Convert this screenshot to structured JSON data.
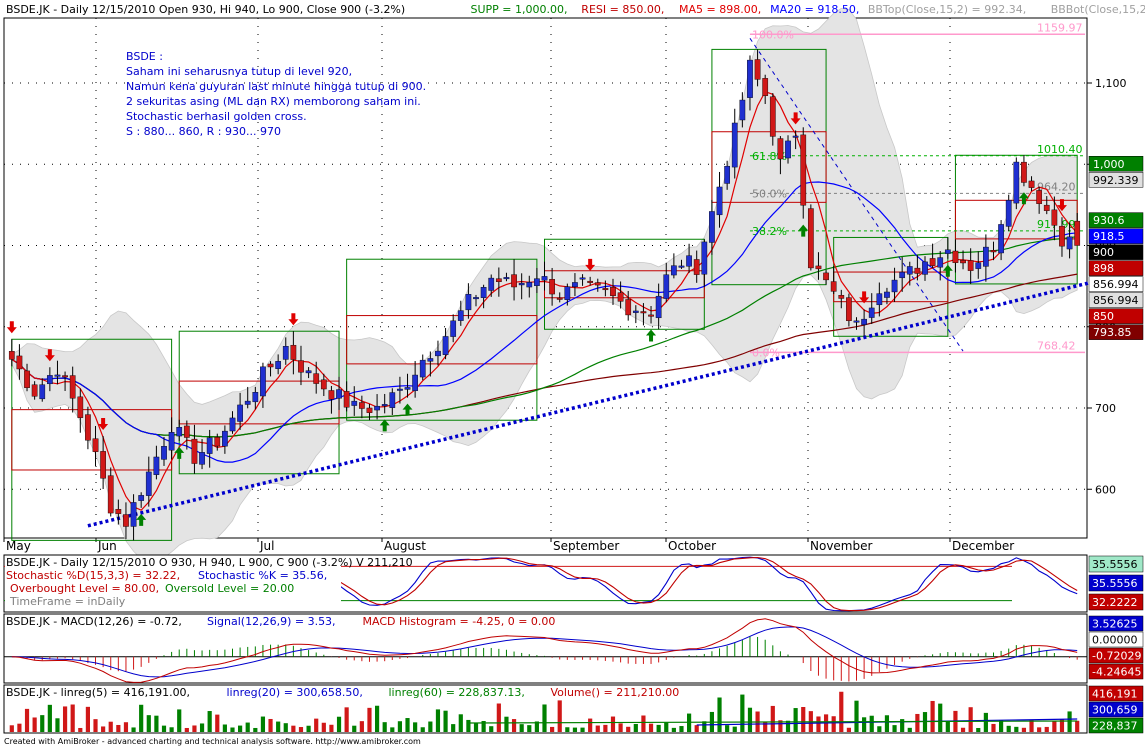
{
  "colors": {
    "up": "#1f2fd0",
    "down": "#d01818",
    "ma5": "#e00000",
    "ma20": "#0000ff",
    "ma60": "#008000",
    "ma100": "#800000",
    "support": "#008000",
    "resistance": "#c00000",
    "fib": "#00b000",
    "fib_grey": "#808080",
    "fib_pink": "#ff99cc",
    "trend": "#0000cc",
    "band_fill": "#e4e4e4",
    "grid": "#000000",
    "buy_arrow": "#008000",
    "sell_arrow": "#e00000",
    "annotation": "#0000cc"
  },
  "main": {
    "header": [
      {
        "text": "BSDE.JK - Daily 12/15/2010 Open 930, Hi 940, Lo 900, Close 900 (-3.2%)",
        "color": "#000000"
      },
      {
        "text": "SUPP = 1,000.00,",
        "color": "#008000"
      },
      {
        "text": "RESI = 850.00,",
        "color": "#c00000"
      },
      {
        "text": "MA5 = 898.00,",
        "color": "#e00000"
      },
      {
        "text": "MA20 = 918.50,",
        "color": "#0000ff"
      },
      {
        "text": "BBTop(Close,15,2) = 992.34,",
        "color": "#a0a0a0"
      },
      {
        "text": "BBBot(Close,15,2) = 8",
        "color": "#a0a0a0"
      }
    ],
    "annotation": [
      "BSDE :",
      "Saham ini seharusnya tutup di level 920,",
      "Namun kena guyuran last minute hingga tutup di 900.",
      "2 sekuritas asing (ML dan RX) memborong saham ini.",
      "Stochastic berhasil golden cross.",
      "S : 880... 860, R : 930... 970"
    ],
    "y_ticks": [
      "600",
      "700",
      "800",
      "900",
      "1,000",
      "1,100"
    ],
    "month_labels": [
      "May",
      "Jun",
      "Jul",
      "August",
      "September",
      "October",
      "November",
      "December"
    ],
    "right_badges": [
      {
        "text": "1,000",
        "fg": "#ffffff",
        "bg": "#008000"
      },
      {
        "text": "992.339",
        "fg": "#000000",
        "bg": "#e0e0e0"
      },
      {
        "text": "930.6",
        "fg": "#ffffff",
        "bg": "#008000"
      },
      {
        "text": "918.5",
        "fg": "#ffffff",
        "bg": "#0000ff"
      },
      {
        "text": "900",
        "fg": "#ffffff",
        "bg": "#000000"
      },
      {
        "text": "898",
        "fg": "#ffffff",
        "bg": "#c00000"
      },
      {
        "text": "856.994",
        "fg": "#000000",
        "bg": "#ffffff"
      },
      {
        "text": "856.994",
        "fg": "#000000",
        "bg": "#e0e0e0"
      },
      {
        "text": "850",
        "fg": "#ffffff",
        "bg": "#c00000"
      },
      {
        "text": "793.85",
        "fg": "#ffffff",
        "bg": "#800000"
      }
    ],
    "fib_levels": [
      {
        "label": "100.0%",
        "value_label": "1159.97",
        "color": "#ff99cc"
      },
      {
        "label": "61.8%",
        "value_label": "1010.40",
        "color": "#00b000"
      },
      {
        "label": "50.0%",
        "value_label": "964.20",
        "color": "#808080"
      },
      {
        "label": "38.2%",
        "value_label": "917.99",
        "color": "#00b000"
      },
      {
        "label": "0.0%",
        "value_label": "768.42",
        "color": "#ff99cc"
      }
    ]
  },
  "stoch_panel": {
    "header_line1": "BSDE.JK - Daily 12/15/2010 O 930, H 940, L 900, C 900 (-3.2%) V 211,210",
    "legend": [
      {
        "text": "Stochastic %D(15,3,3) = 32.22,",
        "color": "#c00000"
      },
      {
        "text": "Stochastic %K = 35.56,",
        "color": "#0000cc"
      },
      {
        "text": "Overbought Level = 80.00,",
        "color": "#c00000"
      },
      {
        "text": "Oversold Level = 20.00",
        "color": "#008000"
      },
      {
        "text": "TimeFrame = inDaily",
        "color": "#808080"
      }
    ],
    "badges": [
      {
        "text": "35.5556",
        "fg": "#000000",
        "bg": "#a0e8c8"
      },
      {
        "text": "35.5556",
        "fg": "#ffffff",
        "bg": "#0000cc"
      },
      {
        "text": "32.2222",
        "fg": "#ffffff",
        "bg": "#c00000"
      }
    ]
  },
  "macd_panel": {
    "legend": [
      {
        "text": "BSDE.JK - MACD(12,26) = -0.72,",
        "color": "#000000"
      },
      {
        "text": "Signal(12,26,9) = 3.53,",
        "color": "#0000cc"
      },
      {
        "text": "MACD Histogram = -4.25, 0 = 0.00",
        "color": "#c00000"
      }
    ],
    "badges": [
      {
        "text": "3.52625",
        "fg": "#ffffff",
        "bg": "#0000cc"
      },
      {
        "text": "0.00000",
        "fg": "#000000",
        "bg": "#ffffff"
      },
      {
        "text": "-0.72029",
        "fg": "#ffffff",
        "bg": "#c00000"
      },
      {
        "text": "-4.24645",
        "fg": "#ffffff",
        "bg": "#c00000"
      }
    ]
  },
  "volume_panel": {
    "legend": [
      {
        "text": "BSDE.JK - linreg(5) = 416,191.00,",
        "color": "#000000"
      },
      {
        "text": "linreg(20) = 300,658.50,",
        "color": "#0000cc"
      },
      {
        "text": "linreg(60) = 228,837.13,",
        "color": "#008000"
      },
      {
        "text": "Volume() = 211,210.00",
        "color": "#c00000"
      }
    ],
    "badges": [
      {
        "text": "416,191",
        "fg": "#ffffff",
        "bg": "#c00000"
      },
      {
        "text": "300,659",
        "fg": "#ffffff",
        "bg": "#0000cc"
      },
      {
        "text": "228,837",
        "fg": "#ffffff",
        "bg": "#008000"
      }
    ]
  },
  "footer": "Created with AmiBroker - advanced charting and technical analysis software. http://www.amibroker.com",
  "chart_data": {
    "type": "candlestick",
    "symbol": "BSDE.JK",
    "timeframe": "Daily",
    "ylim": [
      540,
      1180
    ],
    "y_ticks": [
      600,
      700,
      800,
      900,
      1000,
      1100
    ],
    "start_month": "May",
    "end_date": "12/15/2010",
    "close_path": [
      [
        0,
        760
      ],
      [
        3,
        720
      ],
      [
        6,
        750
      ],
      [
        9,
        690
      ],
      [
        11,
        640
      ],
      [
        13,
        580
      ],
      [
        15,
        560
      ],
      [
        18,
        620
      ],
      [
        21,
        680
      ],
      [
        24,
        640
      ],
      [
        27,
        660
      ],
      [
        30,
        700
      ],
      [
        33,
        740
      ],
      [
        36,
        775
      ],
      [
        39,
        740
      ],
      [
        42,
        720
      ],
      [
        45,
        700
      ],
      [
        48,
        700
      ],
      [
        51,
        720
      ],
      [
        54,
        760
      ],
      [
        57,
        790
      ],
      [
        60,
        830
      ],
      [
        63,
        860
      ],
      [
        66,
        850
      ],
      [
        69,
        865
      ],
      [
        72,
        840
      ],
      [
        75,
        850
      ],
      [
        78,
        840
      ],
      [
        81,
        825
      ],
      [
        84,
        820
      ],
      [
        86,
        860
      ],
      [
        88,
        880
      ],
      [
        90,
        875
      ],
      [
        92,
        940
      ],
      [
        95,
        1040
      ],
      [
        97,
        1120
      ],
      [
        99,
        1085
      ],
      [
        101,
        1000
      ],
      [
        103,
        1040
      ],
      [
        105,
        880
      ],
      [
        108,
        840
      ],
      [
        111,
        800
      ],
      [
        114,
        850
      ],
      [
        117,
        860
      ],
      [
        120,
        880
      ],
      [
        123,
        895
      ],
      [
        126,
        875
      ],
      [
        129,
        900
      ],
      [
        132,
        1000
      ],
      [
        135,
        960
      ],
      [
        138,
        910
      ],
      [
        140,
        900
      ]
    ],
    "support": 1000.0,
    "resistance": 850.0,
    "ma5": 898.0,
    "ma20": 918.5,
    "bb_top": 992.34,
    "bb_bot": 856.994,
    "trendline": [
      [
        10,
        555
      ],
      [
        142,
        855
      ]
    ],
    "fibonacci": {
      "high": 1159.97,
      "low": 768.42,
      "levels": [
        1159.97,
        1010.4,
        964.2,
        917.99,
        768.42
      ]
    },
    "last_bar": {
      "open": 930,
      "high": 940,
      "low": 900,
      "close": 900,
      "change_pct": -3.2,
      "volume": 211210
    },
    "stochastic": {
      "D": 32.22,
      "K": 35.56,
      "overbought": 80,
      "oversold": 20
    },
    "macd": {
      "macd": -0.72,
      "signal": 3.53,
      "histogram": -4.25
    },
    "linreg": {
      "p5": 416191.0,
      "p20": 300658.5,
      "p60": 228837.13,
      "volume": 211210.0
    }
  }
}
